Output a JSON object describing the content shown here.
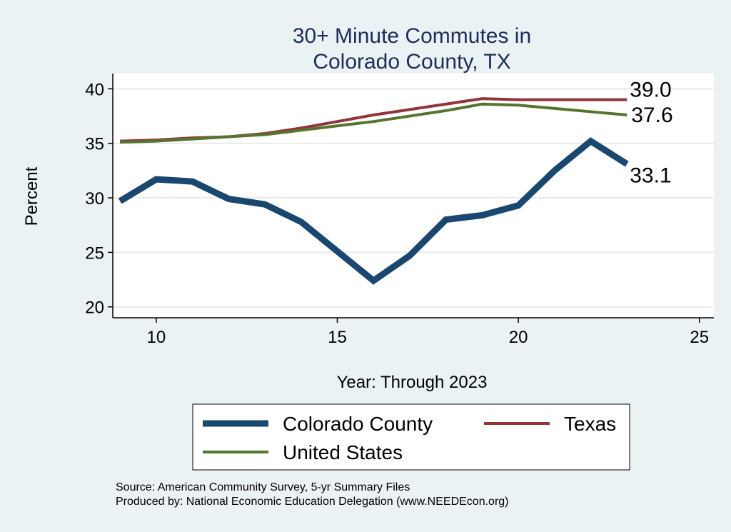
{
  "chart_data": {
    "type": "line",
    "title": [
      "30+ Minute Commutes in",
      "Colorado County, TX"
    ],
    "xlabel": "Year: Through 2023",
    "ylabel": "Percent",
    "xlim": [
      8.8,
      25.4
    ],
    "ylim": [
      19,
      41.4
    ],
    "xticks": [
      10,
      15,
      20,
      25
    ],
    "yticks": [
      20,
      25,
      30,
      35,
      40
    ],
    "grid": true,
    "x": [
      9,
      10,
      11,
      12,
      13,
      14,
      15,
      16,
      17,
      18,
      19,
      20,
      21,
      22,
      23
    ],
    "series": [
      {
        "name": "Colorado County",
        "color": "#1a476f",
        "width": 9,
        "values": [
          29.7,
          31.7,
          31.5,
          29.9,
          29.4,
          27.8,
          25.1,
          22.4,
          24.7,
          28.0,
          28.4,
          29.3,
          32.5,
          35.2,
          33.1
        ],
        "end_label": "33.1"
      },
      {
        "name": "Texas",
        "color": "#90353b",
        "width": 4,
        "values": [
          35.2,
          35.3,
          35.5,
          35.6,
          35.9,
          36.4,
          37.0,
          37.6,
          38.1,
          38.6,
          39.1,
          39.0,
          39.0,
          39.0,
          39.0
        ],
        "end_label": "39.0"
      },
      {
        "name": "United States",
        "color": "#55752f",
        "width": 4,
        "values": [
          35.1,
          35.2,
          35.4,
          35.6,
          35.8,
          36.2,
          36.6,
          37.0,
          37.5,
          38.0,
          38.6,
          38.5,
          38.2,
          37.9,
          37.6
        ],
        "end_label": "37.6"
      }
    ],
    "legend_position": "bottom"
  },
  "notes": [
    "Source: American Community Survey, 5-yr Summary Files",
    "Produced by: National Economic Education Delegation (www.NEEDEcon.org)"
  ]
}
